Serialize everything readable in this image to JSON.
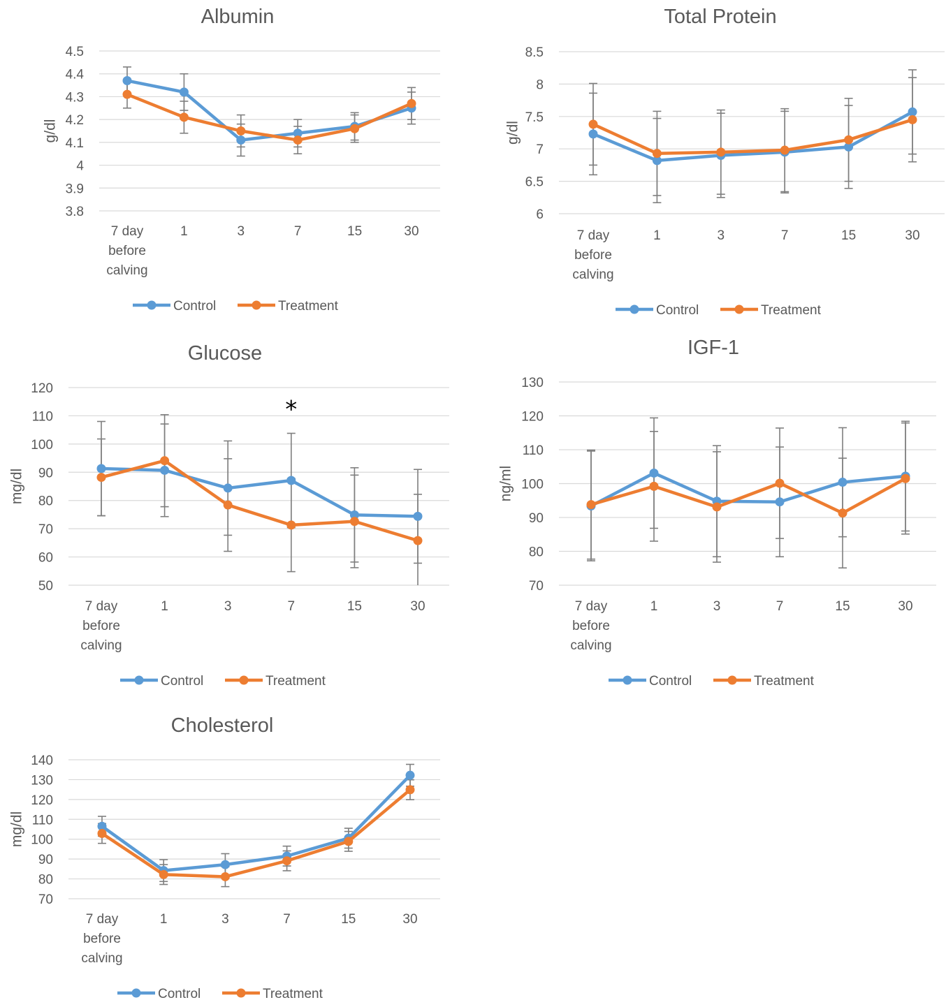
{
  "legend": {
    "control": "Control",
    "treatment": "Treatment"
  },
  "colors": {
    "control": "#5B9BD5",
    "treatment": "#ED7D31",
    "grid": "#D9D9D9",
    "error_bar": "#7F7F7F",
    "text": "#595959"
  },
  "chart_data": [
    {
      "type": "line",
      "title": "Albumin",
      "ylabel": "g/dl",
      "categories": [
        "7 day\nbefore\ncalving",
        "1",
        "3",
        "7",
        "15",
        "30"
      ],
      "ylim": [
        3.8,
        4.5
      ],
      "yticks": [
        "3.8",
        "3.9",
        "4",
        "4.1",
        "4.2",
        "4.3",
        "4.4",
        "4.5"
      ],
      "grid": true,
      "legend_position": "bottom",
      "series": [
        {
          "name": "Control",
          "values": [
            4.37,
            4.32,
            4.11,
            4.14,
            4.17,
            4.25
          ],
          "error": [
            0.06,
            0.08,
            0.07,
            0.06,
            0.06,
            0.07
          ]
        },
        {
          "name": "Treatment",
          "values": [
            4.31,
            4.21,
            4.15,
            4.11,
            4.16,
            4.27
          ],
          "error": [
            0.06,
            0.07,
            0.07,
            0.06,
            0.06,
            0.07
          ]
        }
      ]
    },
    {
      "type": "line",
      "title": "Total Protein",
      "ylabel": "g/dl",
      "categories": [
        "7 day\nbefore\ncalving",
        "1",
        "3",
        "7",
        "15",
        "30"
      ],
      "ylim": [
        6,
        8.5
      ],
      "yticks": [
        "6",
        "6.5",
        "7",
        "7.5",
        "8",
        "8.5"
      ],
      "grid": true,
      "legend_position": "bottom",
      "series": [
        {
          "name": "Control",
          "values": [
            7.23,
            6.82,
            6.9,
            6.95,
            7.03,
            7.57
          ],
          "error": [
            0.63,
            0.65,
            0.65,
            0.63,
            0.64,
            0.65
          ]
        },
        {
          "name": "Treatment",
          "values": [
            7.38,
            6.93,
            6.95,
            6.98,
            7.14,
            7.45
          ],
          "error": [
            0.63,
            0.65,
            0.65,
            0.64,
            0.64,
            0.65
          ]
        }
      ]
    },
    {
      "type": "line",
      "title": "Glucose",
      "ylabel": "mg/dl",
      "categories": [
        "7 day\nbefore\ncalving",
        "1",
        "3",
        "7",
        "15",
        "30"
      ],
      "ylim": [
        50,
        120
      ],
      "yticks": [
        "50",
        "60",
        "70",
        "80",
        "90",
        "100",
        "110",
        "120"
      ],
      "grid": true,
      "legend_position": "bottom",
      "annotation": {
        "text": "*",
        "category_index": 3,
        "y": 113
      },
      "series": [
        {
          "name": "Control",
          "values": [
            91.3,
            90.7,
            84.4,
            87.1,
            74.9,
            74.4
          ],
          "error": [
            16.7,
            16.4,
            16.7,
            16.7,
            16.7,
            16.6
          ]
        },
        {
          "name": "Treatment",
          "values": [
            88.2,
            94.1,
            78.4,
            71.3,
            72.6,
            65.8
          ],
          "error": [
            13.6,
            16.3,
            16.4,
            16.5,
            16.4,
            16.4
          ]
        }
      ]
    },
    {
      "type": "line",
      "title": "IGF-1",
      "ylabel": "ng/ml",
      "categories": [
        "7 day\nbefore\ncalving",
        "1",
        "3",
        "7",
        "15",
        "30"
      ],
      "ylim": [
        70,
        130
      ],
      "yticks": [
        "70",
        "80",
        "90",
        "100",
        "110",
        "120",
        "130"
      ],
      "grid": true,
      "legend_position": "bottom",
      "series": [
        {
          "name": "Control",
          "values": [
            93.4,
            103.1,
            94.8,
            94.6,
            100.4,
            102.2
          ],
          "error": [
            16.2,
            16.3,
            16.4,
            16.2,
            16.1,
            16.2
          ]
        },
        {
          "name": "Treatment",
          "values": [
            93.8,
            99.2,
            93.1,
            100.1,
            91.3,
            101.5
          ],
          "error": [
            16.1,
            16.2,
            16.3,
            16.3,
            16.2,
            16.4
          ]
        }
      ]
    },
    {
      "type": "line",
      "title": "Cholesterol",
      "ylabel": "mg/dl",
      "categories": [
        "7 day\nbefore\ncalving",
        "1",
        "3",
        "7",
        "15",
        "30"
      ],
      "ylim": [
        70,
        140
      ],
      "yticks": [
        "70",
        "80",
        "90",
        "100",
        "110",
        "120",
        "130",
        "140"
      ],
      "grid": true,
      "legend_position": "bottom",
      "series": [
        {
          "name": "Control",
          "values": [
            106.5,
            84.2,
            87.2,
            91.5,
            100.5,
            132.2
          ],
          "error": [
            5.0,
            5.5,
            5.5,
            5.0,
            5.0,
            5.5
          ]
        },
        {
          "name": "Treatment",
          "values": [
            102.9,
            82.2,
            81.1,
            89.1,
            98.9,
            124.9
          ],
          "error": [
            5.0,
            5.0,
            5.0,
            5.0,
            5.0,
            5.0
          ]
        }
      ]
    }
  ]
}
